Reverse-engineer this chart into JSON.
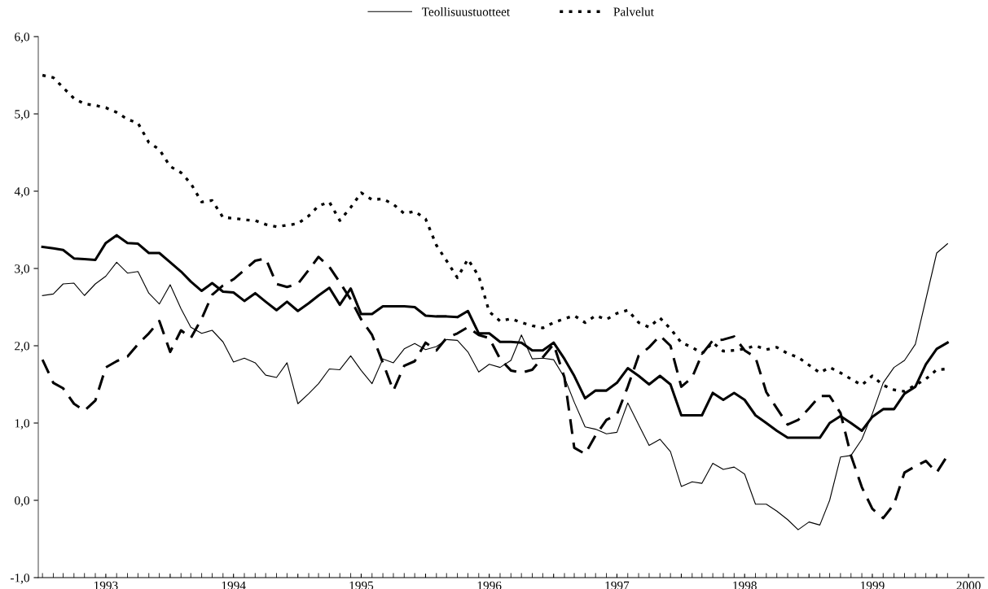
{
  "chart_data": {
    "type": "line",
    "x": [
      "1993-01",
      "1993-02",
      "1993-03",
      "1993-04",
      "1993-05",
      "1993-06",
      "1993-07",
      "1993-08",
      "1993-09",
      "1993-10",
      "1993-11",
      "1993-12",
      "1994-01",
      "1994-02",
      "1994-03",
      "1994-04",
      "1994-05",
      "1994-06",
      "1994-07",
      "1994-08",
      "1994-09",
      "1994-10",
      "1994-11",
      "1994-12",
      "1995-01",
      "1995-02",
      "1995-03",
      "1995-04",
      "1995-05",
      "1995-06",
      "1995-07",
      "1995-08",
      "1995-09",
      "1995-10",
      "1995-11",
      "1995-12",
      "1996-01",
      "1996-02",
      "1996-03",
      "1996-04",
      "1996-05",
      "1996-06",
      "1996-07",
      "1996-08",
      "1996-09",
      "1996-10",
      "1996-11",
      "1996-12",
      "1997-01",
      "1997-02",
      "1997-03",
      "1997-04",
      "1997-05",
      "1997-06",
      "1997-07",
      "1997-08",
      "1997-09",
      "1997-10",
      "1997-11",
      "1997-12",
      "1998-01",
      "1998-02",
      "1998-03",
      "1998-04",
      "1998-05",
      "1998-06",
      "1998-07",
      "1998-08",
      "1998-09",
      "1998-10",
      "1998-11",
      "1998-12",
      "1999-01",
      "1999-02",
      "1999-03",
      "1999-04",
      "1999-05",
      "1999-06",
      "1999-07",
      "1999-08",
      "1999-09",
      "1999-10",
      "1999-11",
      "1999-12",
      "2000-01",
      "2000-02"
    ],
    "series": [
      {
        "color": "#000000",
        "line_style": "solid",
        "values": [
          3.28,
          3.26,
          3.24,
          3.13,
          3.12,
          3.11,
          3.33,
          3.43,
          3.33,
          3.32,
          3.2,
          3.2,
          3.08,
          2.96,
          2.83,
          2.71,
          2.81,
          2.7,
          2.69,
          2.58,
          2.68,
          2.57,
          2.46,
          2.57,
          2.45,
          2.55,
          2.65,
          2.75,
          2.53,
          2.74,
          2.41,
          2.41,
          2.51,
          2.51,
          2.51,
          2.5,
          2.39,
          2.38,
          2.38,
          2.37,
          2.45,
          2.16,
          2.16,
          2.05,
          2.05,
          2.04,
          1.94,
          1.94,
          2.04,
          1.83,
          1.61,
          1.32,
          1.42,
          1.42,
          1.52,
          1.71,
          1.61,
          1.5,
          1.61,
          1.5,
          1.1,
          1.1,
          1.1,
          1.39,
          1.3,
          1.39,
          1.3,
          1.1,
          1.0,
          0.9,
          0.81,
          0.81,
          0.81,
          0.81,
          1.0,
          1.09,
          1.0,
          0.9,
          1.08,
          1.18,
          1.18,
          1.38,
          1.47,
          1.76,
          1.96,
          2.04
        ]
      },
      {
        "name": "Teollisuustuotteet",
        "color": "#000000",
        "line_style": "solid",
        "values": [
          2.65,
          2.67,
          2.8,
          2.81,
          2.65,
          2.8,
          2.9,
          3.08,
          2.94,
          2.96,
          2.68,
          2.54,
          2.79,
          2.48,
          2.24,
          2.16,
          2.2,
          2.05,
          1.79,
          1.84,
          1.78,
          1.62,
          1.59,
          1.78,
          1.25,
          1.38,
          1.51,
          1.7,
          1.69,
          1.87,
          1.68,
          1.51,
          1.83,
          1.78,
          1.96,
          2.03,
          1.95,
          1.99,
          2.08,
          2.07,
          1.92,
          1.66,
          1.76,
          1.72,
          1.81,
          2.14,
          1.83,
          1.84,
          1.82,
          1.59,
          1.27,
          0.95,
          0.92,
          0.86,
          0.88,
          1.26,
          0.98,
          0.71,
          0.79,
          0.63,
          0.18,
          0.24,
          0.22,
          0.48,
          0.4,
          0.43,
          0.34,
          -0.05,
          -0.05,
          -0.14,
          -0.25,
          -0.38,
          -0.28,
          -0.32,
          0.0,
          0.56,
          0.58,
          0.79,
          1.12,
          1.52,
          1.72,
          1.81,
          2.02,
          2.6,
          3.2,
          3.32
        ]
      },
      {
        "color": "#000000",
        "line_style": "dashed",
        "values": [
          1.82,
          1.52,
          1.45,
          1.25,
          1.16,
          1.29,
          1.72,
          1.8,
          1.86,
          2.02,
          2.16,
          2.32,
          1.92,
          2.2,
          2.1,
          2.35,
          2.66,
          2.78,
          2.86,
          2.98,
          3.1,
          3.13,
          2.8,
          2.76,
          2.8,
          2.98,
          3.15,
          3.02,
          2.82,
          2.6,
          2.34,
          2.14,
          1.78,
          1.42,
          1.74,
          1.8,
          2.04,
          1.94,
          2.1,
          2.16,
          2.24,
          2.14,
          2.1,
          1.83,
          1.68,
          1.65,
          1.69,
          1.85,
          2.02,
          1.59,
          0.68,
          0.6,
          0.84,
          1.04,
          1.11,
          1.47,
          1.87,
          1.98,
          2.13,
          2.0,
          1.47,
          1.59,
          1.89,
          2.07,
          2.08,
          2.12,
          1.94,
          1.85,
          1.4,
          1.19,
          0.98,
          1.04,
          1.19,
          1.35,
          1.35,
          1.13,
          0.58,
          0.17,
          -0.11,
          -0.23,
          -0.05,
          0.36,
          0.44,
          0.51,
          0.36,
          0.58
        ]
      },
      {
        "name": "Palvelut",
        "color": "#000000",
        "line_style": "dotted",
        "values": [
          5.5,
          5.47,
          5.34,
          5.2,
          5.13,
          5.11,
          5.08,
          5.02,
          4.93,
          4.88,
          4.63,
          4.54,
          4.32,
          4.24,
          4.1,
          3.86,
          3.88,
          3.66,
          3.65,
          3.63,
          3.62,
          3.57,
          3.54,
          3.56,
          3.58,
          3.68,
          3.81,
          3.86,
          3.62,
          3.79,
          3.98,
          3.89,
          3.9,
          3.83,
          3.71,
          3.74,
          3.64,
          3.3,
          3.1,
          2.88,
          3.12,
          2.9,
          2.44,
          2.32,
          2.35,
          2.3,
          2.26,
          2.23,
          2.3,
          2.35,
          2.39,
          2.3,
          2.39,
          2.34,
          2.42,
          2.46,
          2.3,
          2.24,
          2.36,
          2.22,
          2.04,
          1.98,
          1.9,
          2.04,
          1.93,
          1.94,
          1.96,
          2.0,
          1.95,
          1.98,
          1.9,
          1.85,
          1.75,
          1.65,
          1.72,
          1.65,
          1.57,
          1.49,
          1.61,
          1.49,
          1.43,
          1.41,
          1.49,
          1.57,
          1.69,
          1.7
        ]
      }
    ],
    "ylim": [
      -1,
      6
    ],
    "yticks": [
      {
        "value": -1,
        "label": "-1,0"
      },
      {
        "value": 0,
        "label": "0,0"
      },
      {
        "value": 1,
        "label": "1,0"
      },
      {
        "value": 2,
        "label": "2,0"
      },
      {
        "value": 3,
        "label": "3,0"
      },
      {
        "value": 4,
        "label": "4,0"
      },
      {
        "value": 5,
        "label": "5,0"
      },
      {
        "value": 6,
        "label": "6,0"
      }
    ],
    "xlim": [
      "1992-12-20",
      "2000-05-15"
    ],
    "xticks": [
      {
        "value": "1993-07",
        "label": "1993"
      },
      {
        "value": "1994-01",
        "label": null
      },
      {
        "value": "1994-07",
        "label": "1994"
      },
      {
        "value": "1995-01",
        "label": null
      },
      {
        "value": "1995-07",
        "label": "1995"
      },
      {
        "value": "1996-01",
        "label": null
      },
      {
        "value": "1996-07",
        "label": "1996"
      },
      {
        "value": "1997-01",
        "label": null
      },
      {
        "value": "1997-07",
        "label": "1997"
      },
      {
        "value": "1998-01",
        "label": null
      },
      {
        "value": "1998-07",
        "label": "1998"
      },
      {
        "value": "1999-01",
        "label": null
      },
      {
        "value": "1999-07",
        "label": "1999"
      },
      {
        "value": "2000-01",
        "label": null
      },
      {
        "value": "2000-04",
        "label": "2000"
      }
    ],
    "grid": false,
    "legend": "top"
  }
}
